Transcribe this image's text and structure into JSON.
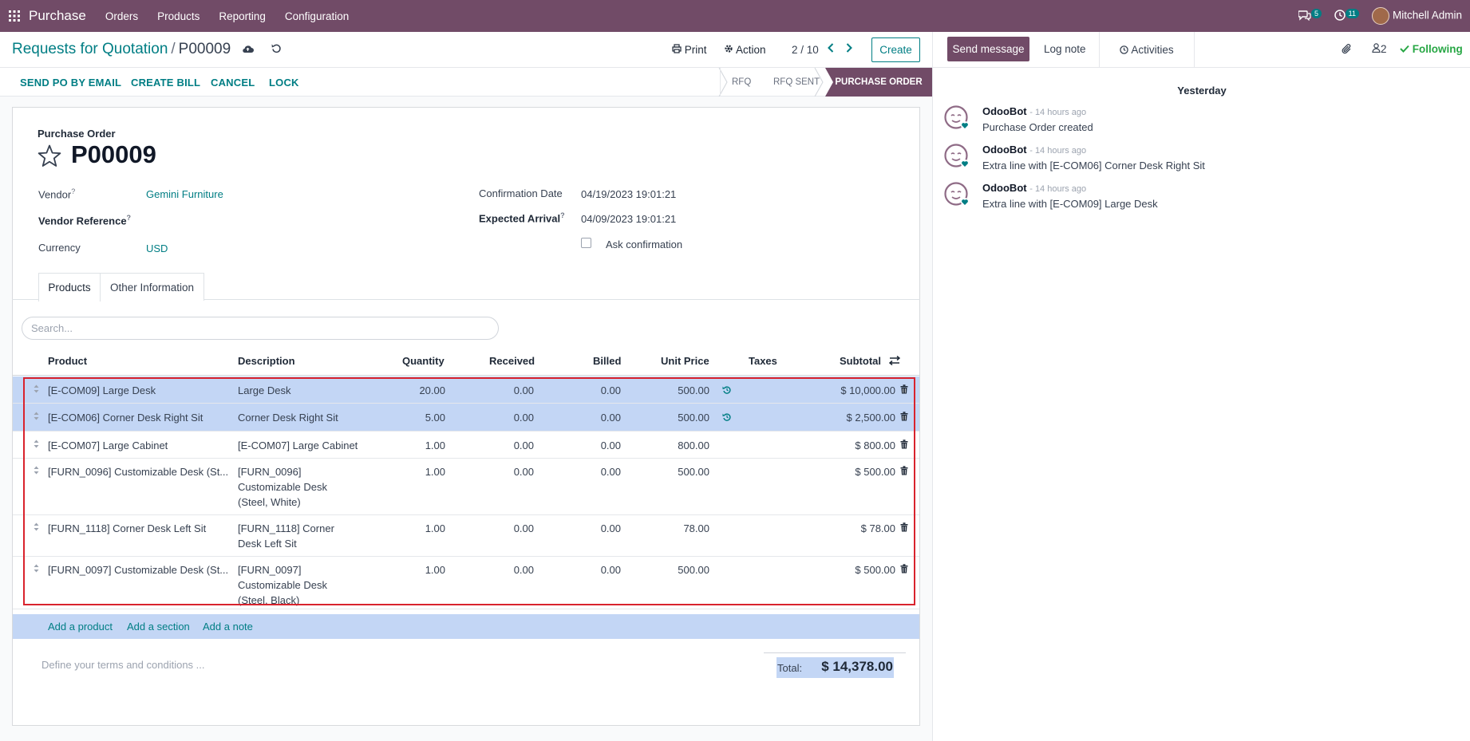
{
  "navbar": {
    "app_name": "Purchase",
    "menus": [
      "Orders",
      "Products",
      "Reporting",
      "Configuration"
    ],
    "messages_count": "5",
    "activities_count": "11",
    "user_name": "Mitchell Admin"
  },
  "control_panel": {
    "breadcrumb_parent": "Requests for Quotation",
    "breadcrumb_sep": "/",
    "breadcrumb_current": "P00009",
    "print_label": "Print",
    "action_label": "Action",
    "pager": "2 / 10",
    "create_label": "Create"
  },
  "status_bar": {
    "buttons": [
      "SEND PO BY EMAIL",
      "CREATE BILL",
      "CANCEL",
      "LOCK"
    ],
    "stages": [
      "RFQ",
      "RFQ SENT",
      "PURCHASE ORDER"
    ],
    "current_stage": "PURCHASE ORDER"
  },
  "form": {
    "label": "Purchase Order",
    "name": "P00009",
    "vendor_label": "Vendor",
    "vendor_value": "Gemini Furniture",
    "vendor_ref_label": "Vendor Reference",
    "currency_label": "Currency",
    "currency_value": "USD",
    "confirmation_date_label": "Confirmation Date",
    "confirmation_date_value": "04/19/2023 19:01:21",
    "expected_arrival_label": "Expected Arrival",
    "expected_arrival_value": "04/09/2023 19:01:21",
    "ask_confirmation_label": "Ask confirmation",
    "help_mark": "?"
  },
  "tabs": [
    "Products",
    "Other Information"
  ],
  "search_placeholder": "Search...",
  "columns": [
    "Product",
    "Description",
    "Quantity",
    "Received",
    "Billed",
    "Unit Price",
    "Taxes",
    "Subtotal"
  ],
  "lines": [
    {
      "product": "[E-COM09] Large Desk",
      "description": [
        "Large Desk"
      ],
      "quantity": "20.00",
      "received": "0.00",
      "billed": "0.00",
      "unit_price": "500.00",
      "subtotal": "$ 10,000.00",
      "selected": true,
      "history": true
    },
    {
      "product": "[E-COM06] Corner Desk Right Sit",
      "description": [
        "Corner Desk Right Sit"
      ],
      "quantity": "5.00",
      "received": "0.00",
      "billed": "0.00",
      "unit_price": "500.00",
      "subtotal": "$ 2,500.00",
      "selected": true,
      "history": true
    },
    {
      "product": "[E-COM07] Large Cabinet",
      "description": [
        "[E-COM07] Large Cabinet"
      ],
      "quantity": "1.00",
      "received": "0.00",
      "billed": "0.00",
      "unit_price": "800.00",
      "subtotal": "$ 800.00",
      "selected": false,
      "history": false
    },
    {
      "product": "[FURN_0096] Customizable Desk (St...",
      "description": [
        "[FURN_0096]",
        "Customizable Desk",
        "(Steel, White)"
      ],
      "quantity": "1.00",
      "received": "0.00",
      "billed": "0.00",
      "unit_price": "500.00",
      "subtotal": "$ 500.00",
      "selected": false,
      "history": false
    },
    {
      "product": "[FURN_1118] Corner Desk Left Sit",
      "description": [
        "[FURN_1118] Corner",
        "Desk Left Sit"
      ],
      "quantity": "1.00",
      "received": "0.00",
      "billed": "0.00",
      "unit_price": "78.00",
      "subtotal": "$ 78.00",
      "selected": false,
      "history": false
    },
    {
      "product": "[FURN_0097] Customizable Desk (St...",
      "description": [
        "[FURN_0097]",
        "Customizable Desk",
        "(Steel, Black)"
      ],
      "quantity": "1.00",
      "received": "0.00",
      "billed": "0.00",
      "unit_price": "500.00",
      "subtotal": "$ 500.00",
      "selected": false,
      "history": false
    }
  ],
  "add_links": [
    "Add a product",
    "Add a section",
    "Add a note"
  ],
  "terms_placeholder": "Define your terms and conditions ...",
  "total_label": "Total:",
  "total_value": "$ 14,378.00",
  "chatter": {
    "send_message": "Send message",
    "log_note": "Log note",
    "activities": "Activities",
    "followers_count": "2",
    "following": "Following",
    "day_label": "Yesterday",
    "messages": [
      {
        "author": "OdooBot",
        "time": "- 14 hours ago",
        "text": "Purchase Order created"
      },
      {
        "author": "OdooBot",
        "time": "- 14 hours ago",
        "text": "Extra line with [E-COM06] Corner Desk Right Sit"
      },
      {
        "author": "OdooBot",
        "time": "- 14 hours ago",
        "text": "Extra line with [E-COM09] Large Desk"
      }
    ]
  },
  "colors": {
    "brand": "#714b67",
    "accent": "#017e84",
    "selected_row": "#c3d6f5",
    "highlight_box": "#d9232d",
    "following": "#28a745"
  }
}
